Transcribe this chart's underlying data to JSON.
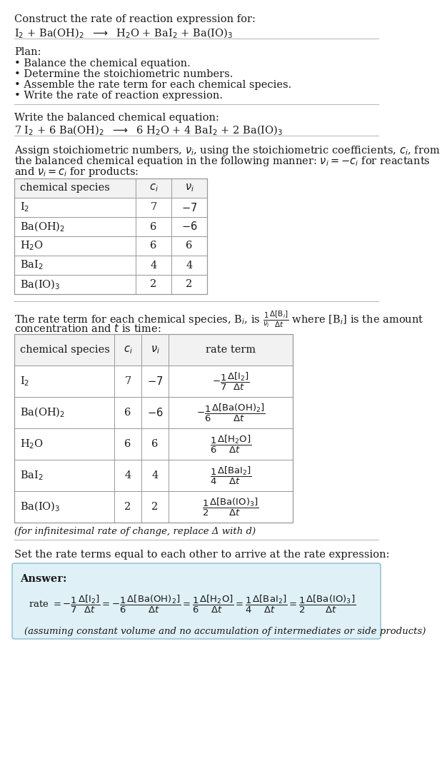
{
  "bg_color": "#ffffff",
  "text_color": "#1a1a1a",
  "title_line1": "Construct the rate of reaction expression for:",
  "plan_header": "Plan:",
  "plan_items": [
    "• Balance the chemical equation.",
    "• Determine the stoichiometric numbers.",
    "• Assemble the rate term for each chemical species.",
    "• Write the rate of reaction expression."
  ],
  "balanced_header": "Write the balanced chemical equation:",
  "stoich_intro1": "Assign stoichiometric numbers, $\\nu_i$, using the stoichiometric coefficients, $c_i$, from",
  "stoich_intro2": "the balanced chemical equation in the following manner: $\\nu_i = -c_i$ for reactants",
  "stoich_intro3": "and $\\nu_i = c_i$ for products:",
  "rate_intro1": "The rate term for each chemical species, B$_i$, is $\\frac{1}{\\nu_i}\\frac{\\Delta[\\mathrm{B}_i]}{\\Delta t}$ where [B$_i$] is the amount",
  "rate_intro2": "concentration and $t$ is time:",
  "infinitesimal_note": "(for infinitesimal rate of change, replace Δ with d)",
  "set_equal_text": "Set the rate terms equal to each other to arrive at the rate expression:",
  "answer_label": "Answer:",
  "answer_footnote": "(assuming constant volume and no accumulation of intermediates or side products)",
  "answer_box_color": "#dff0f7",
  "table_border_color": "#999999",
  "table_header_bg": "#f2f2f2"
}
